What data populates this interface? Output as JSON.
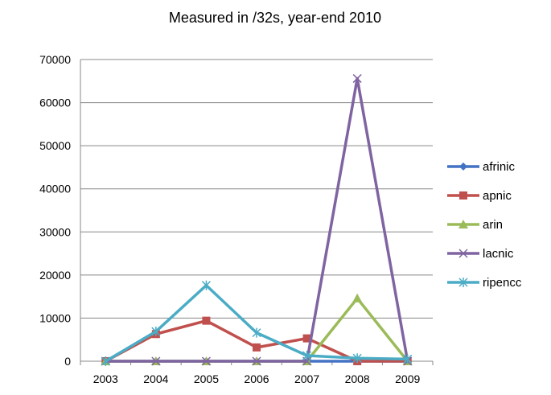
{
  "chart_data": {
    "type": "line",
    "title": "Measured in /32s, year-end 2010",
    "xlabel": "",
    "ylabel": "",
    "categories": [
      "2003",
      "2004",
      "2005",
      "2006",
      "2007",
      "2008",
      "2009"
    ],
    "ylim": [
      0,
      70000
    ],
    "yticks": [
      "0",
      "10000",
      "20000",
      "30000",
      "40000",
      "50000",
      "60000",
      "70000"
    ],
    "grid": "horizontal",
    "legend_position": "right",
    "series": [
      {
        "name": "afrinic",
        "color": "#4472C4",
        "marker": "diamond",
        "values": [
          0,
          0,
          0,
          0,
          0,
          0,
          0
        ]
      },
      {
        "name": "apnic",
        "color": "#C0504D",
        "marker": "square",
        "values": [
          0,
          6300,
          9400,
          3200,
          5300,
          0,
          0
        ]
      },
      {
        "name": "arin",
        "color": "#9BBB59",
        "marker": "triangle",
        "values": [
          0,
          0,
          0,
          0,
          0,
          14600,
          0
        ]
      },
      {
        "name": "lacnic",
        "color": "#8064A2",
        "marker": "x",
        "values": [
          0,
          0,
          0,
          0,
          0,
          65600,
          0
        ]
      },
      {
        "name": "ripencc",
        "color": "#4BACC6",
        "marker": "star",
        "values": [
          0,
          6900,
          17600,
          6600,
          1300,
          700,
          500
        ]
      }
    ]
  }
}
